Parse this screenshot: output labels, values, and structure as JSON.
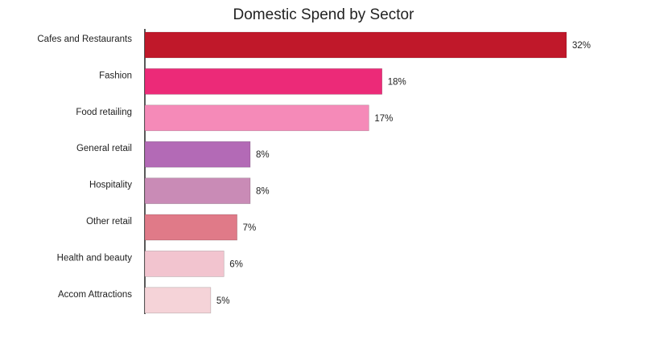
{
  "chart_data": {
    "type": "bar",
    "orientation": "horizontal",
    "title": "Domestic Spend by Sector",
    "categories": [
      "Cafes and Restaurants",
      "Fashion",
      "Food retailing",
      "General retail",
      "Hospitality",
      "Other retail",
      "Health and beauty",
      "Accom Attractions"
    ],
    "values": [
      32,
      18,
      17,
      8,
      8,
      7,
      6,
      5
    ],
    "value_labels": [
      "32%",
      "18%",
      "17%",
      "8%",
      "8%",
      "7%",
      "6%",
      "5%"
    ],
    "bar_colors": [
      "#c0182a",
      "#ec2a78",
      "#f58ab8",
      "#b36ab6",
      "#c98bb6",
      "#e07a88",
      "#f2c4cf",
      "#f5d3d8"
    ],
    "unit": "%",
    "grid": false,
    "legend": "none"
  }
}
